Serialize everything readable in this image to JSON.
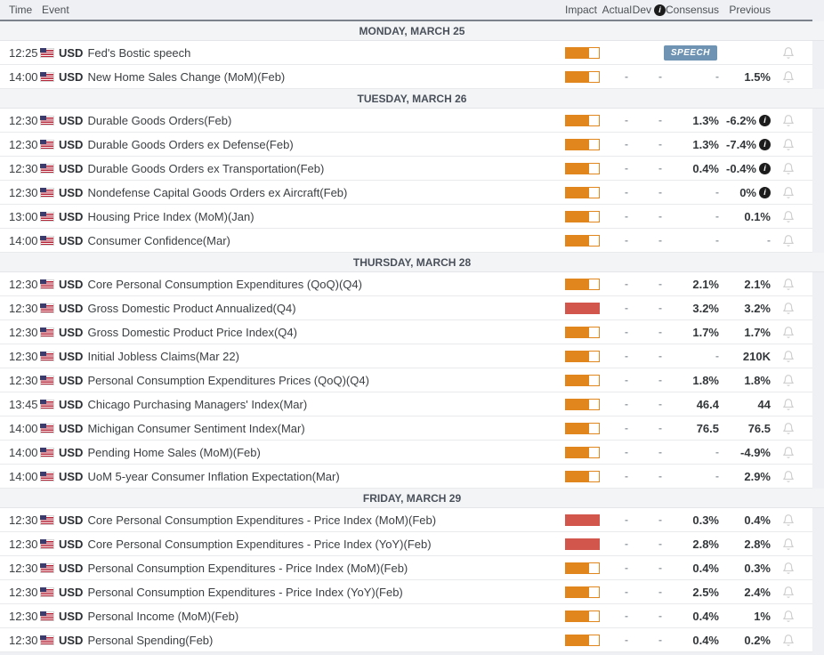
{
  "header": {
    "columns": {
      "time": "Time",
      "event": "Event",
      "impact": "Impact",
      "actual": "Actual",
      "dev": "Dev",
      "consensus": "Consensus",
      "previous": "Previous"
    },
    "dev_info_icon": "i"
  },
  "colors": {
    "impact_medium": "#e1861d",
    "impact_high": "#d2564b",
    "speech_badge": "#6f94b3",
    "header_border": "#7b828b"
  },
  "icons": {
    "info": "info-icon",
    "bell": "bell-icon",
    "flag": "us-flag-icon"
  },
  "sections": [
    {
      "title": "MONDAY, MARCH 25",
      "rows": [
        {
          "time": "12:25",
          "currency": "USD",
          "event": "Fed's Bostic speech",
          "impact": "medium",
          "actual": "",
          "dev": "",
          "consensus": "",
          "consensus_badge": "SPEECH",
          "previous": "",
          "info": false
        },
        {
          "time": "14:00",
          "currency": "USD",
          "event": "New Home Sales Change (MoM)(Feb)",
          "impact": "medium",
          "actual": "-",
          "dev": "-",
          "consensus": "-",
          "previous": "1.5%",
          "info": false
        }
      ]
    },
    {
      "title": "TUESDAY, MARCH 26",
      "rows": [
        {
          "time": "12:30",
          "currency": "USD",
          "event": "Durable Goods Orders(Feb)",
          "impact": "medium",
          "actual": "-",
          "dev": "-",
          "consensus": "1.3%",
          "previous": "-6.2%",
          "info": true
        },
        {
          "time": "12:30",
          "currency": "USD",
          "event": "Durable Goods Orders ex Defense(Feb)",
          "impact": "medium",
          "actual": "-",
          "dev": "-",
          "consensus": "1.3%",
          "previous": "-7.4%",
          "info": true
        },
        {
          "time": "12:30",
          "currency": "USD",
          "event": "Durable Goods Orders ex Transportation(Feb)",
          "impact": "medium",
          "actual": "-",
          "dev": "-",
          "consensus": "0.4%",
          "previous": "-0.4%",
          "info": true
        },
        {
          "time": "12:30",
          "currency": "USD",
          "event": "Nondefense Capital Goods Orders ex Aircraft(Feb)",
          "impact": "medium",
          "actual": "-",
          "dev": "-",
          "consensus": "-",
          "previous": "0%",
          "info": true
        },
        {
          "time": "13:00",
          "currency": "USD",
          "event": "Housing Price Index (MoM)(Jan)",
          "impact": "medium",
          "actual": "-",
          "dev": "-",
          "consensus": "-",
          "previous": "0.1%",
          "info": false
        },
        {
          "time": "14:00",
          "currency": "USD",
          "event": "Consumer Confidence(Mar)",
          "impact": "medium",
          "actual": "-",
          "dev": "-",
          "consensus": "-",
          "previous": "-",
          "info": false
        }
      ]
    },
    {
      "title": "THURSDAY, MARCH 28",
      "rows": [
        {
          "time": "12:30",
          "currency": "USD",
          "event": "Core Personal Consumption Expenditures (QoQ)(Q4)",
          "impact": "medium",
          "actual": "-",
          "dev": "-",
          "consensus": "2.1%",
          "previous": "2.1%",
          "info": false
        },
        {
          "time": "12:30",
          "currency": "USD",
          "event": "Gross Domestic Product Annualized(Q4)",
          "impact": "high",
          "actual": "-",
          "dev": "-",
          "consensus": "3.2%",
          "previous": "3.2%",
          "info": false
        },
        {
          "time": "12:30",
          "currency": "USD",
          "event": "Gross Domestic Product Price Index(Q4)",
          "impact": "medium",
          "actual": "-",
          "dev": "-",
          "consensus": "1.7%",
          "previous": "1.7%",
          "info": false
        },
        {
          "time": "12:30",
          "currency": "USD",
          "event": "Initial Jobless Claims(Mar 22)",
          "impact": "medium",
          "actual": "-",
          "dev": "-",
          "consensus": "-",
          "previous": "210K",
          "info": false
        },
        {
          "time": "12:30",
          "currency": "USD",
          "event": "Personal Consumption Expenditures Prices (QoQ)(Q4)",
          "impact": "medium",
          "actual": "-",
          "dev": "-",
          "consensus": "1.8%",
          "previous": "1.8%",
          "info": false
        },
        {
          "time": "13:45",
          "currency": "USD",
          "event": "Chicago Purchasing Managers' Index(Mar)",
          "impact": "medium",
          "actual": "-",
          "dev": "-",
          "consensus": "46.4",
          "previous": "44",
          "info": false
        },
        {
          "time": "14:00",
          "currency": "USD",
          "event": "Michigan Consumer Sentiment Index(Mar)",
          "impact": "medium",
          "actual": "-",
          "dev": "-",
          "consensus": "76.5",
          "previous": "76.5",
          "info": false
        },
        {
          "time": "14:00",
          "currency": "USD",
          "event": "Pending Home Sales (MoM)(Feb)",
          "impact": "medium",
          "actual": "-",
          "dev": "-",
          "consensus": "-",
          "previous": "-4.9%",
          "info": false
        },
        {
          "time": "14:00",
          "currency": "USD",
          "event": "UoM 5-year Consumer Inflation Expectation(Mar)",
          "impact": "medium",
          "actual": "-",
          "dev": "-",
          "consensus": "-",
          "previous": "2.9%",
          "info": false
        }
      ]
    },
    {
      "title": "FRIDAY, MARCH 29",
      "rows": [
        {
          "time": "12:30",
          "currency": "USD",
          "event": "Core Personal Consumption Expenditures - Price Index (MoM)(Feb)",
          "impact": "high",
          "actual": "-",
          "dev": "-",
          "consensus": "0.3%",
          "previous": "0.4%",
          "info": false
        },
        {
          "time": "12:30",
          "currency": "USD",
          "event": "Core Personal Consumption Expenditures - Price Index (YoY)(Feb)",
          "impact": "high",
          "actual": "-",
          "dev": "-",
          "consensus": "2.8%",
          "previous": "2.8%",
          "info": false
        },
        {
          "time": "12:30",
          "currency": "USD",
          "event": "Personal Consumption Expenditures - Price Index (MoM)(Feb)",
          "impact": "medium",
          "actual": "-",
          "dev": "-",
          "consensus": "0.4%",
          "previous": "0.3%",
          "info": false
        },
        {
          "time": "12:30",
          "currency": "USD",
          "event": "Personal Consumption Expenditures - Price Index (YoY)(Feb)",
          "impact": "medium",
          "actual": "-",
          "dev": "-",
          "consensus": "2.5%",
          "previous": "2.4%",
          "info": false
        },
        {
          "time": "12:30",
          "currency": "USD",
          "event": "Personal Income (MoM)(Feb)",
          "impact": "medium",
          "actual": "-",
          "dev": "-",
          "consensus": "0.4%",
          "previous": "1%",
          "info": false
        },
        {
          "time": "12:30",
          "currency": "USD",
          "event": "Personal Spending(Feb)",
          "impact": "medium",
          "actual": "-",
          "dev": "-",
          "consensus": "0.4%",
          "previous": "0.2%",
          "info": false
        }
      ]
    }
  ]
}
